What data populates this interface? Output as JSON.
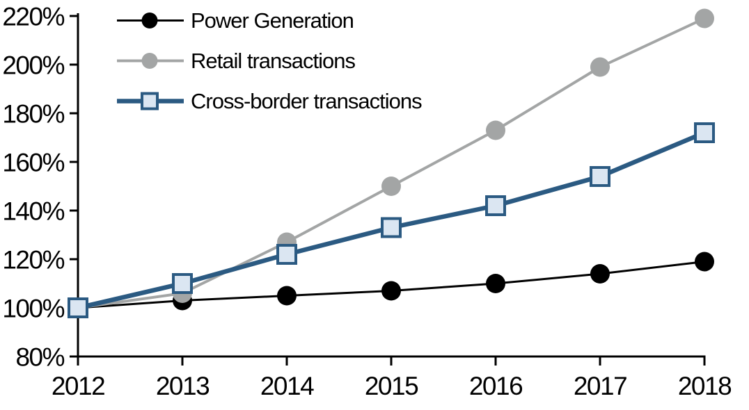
{
  "chart_data": {
    "type": "line",
    "title": "",
    "xlabel": "",
    "ylabel": "",
    "grid": false,
    "legend_position": "top-left",
    "background_color": "#ffffff",
    "axis_color": "#000000",
    "x": [
      2012,
      2013,
      2014,
      2015,
      2016,
      2017,
      2018
    ],
    "x_tick_labels": [
      "2012",
      "2013",
      "2014",
      "2015",
      "2016",
      "2017",
      "2018"
    ],
    "yaxis": {
      "min": 80,
      "max": 220,
      "step": 20,
      "unit": "%",
      "tick_values": [
        80,
        100,
        120,
        140,
        160,
        180,
        200,
        220
      ],
      "tick_labels": [
        "80%",
        "100%",
        "120%",
        "140%",
        "160%",
        "180%",
        "200%",
        "220%"
      ]
    },
    "series": [
      {
        "name": "Power Generation",
        "color": "#000000",
        "marker": "circle",
        "marker_fill": "#000000",
        "marker_size": 14,
        "line_width": 3,
        "values": [
          100,
          103,
          105,
          107,
          110,
          114,
          119
        ]
      },
      {
        "name": "Retail transactions",
        "color": "#a3a5a5",
        "marker": "circle",
        "marker_fill": "#a3a5a5",
        "marker_size": 14,
        "line_width": 4,
        "values": [
          100,
          106,
          127,
          150,
          173,
          199,
          219
        ]
      },
      {
        "name": "Cross-border transactions",
        "color": "#2b5a82",
        "marker": "square",
        "marker_fill": "#dbe6f2",
        "marker_size": 13,
        "line_width": 6.5,
        "values": [
          100,
          110,
          122,
          133,
          142,
          154,
          172
        ]
      }
    ]
  }
}
